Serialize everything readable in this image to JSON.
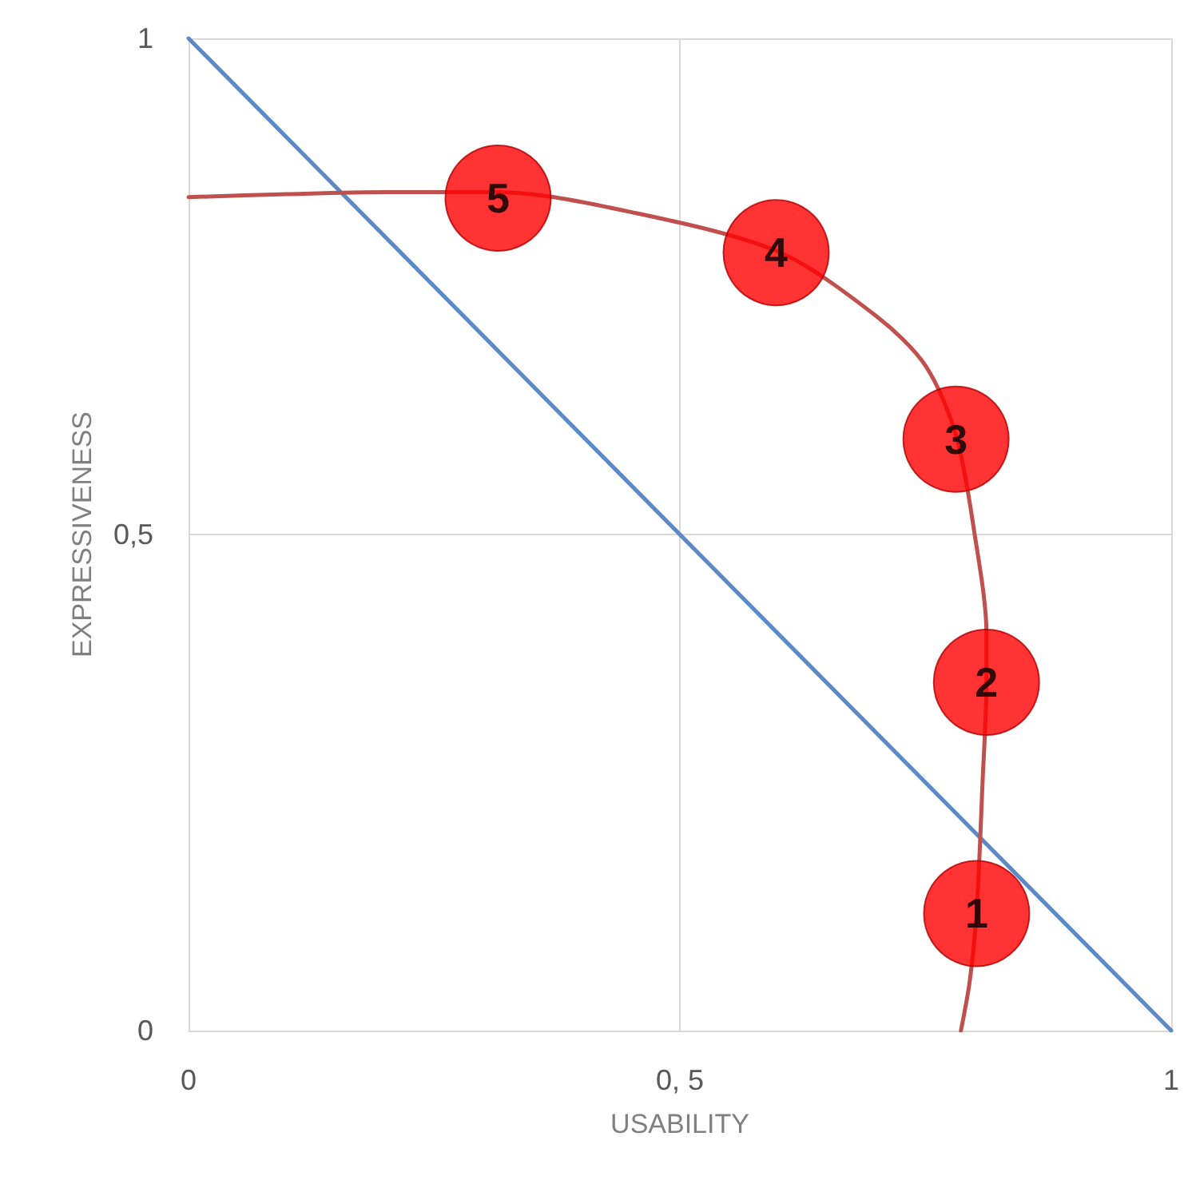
{
  "chart_data": {
    "type": "line",
    "xlabel": "USABILITY",
    "ylabel": "EXPRESSIVENESS",
    "xlim": [
      0,
      1
    ],
    "ylim": [
      0,
      1
    ],
    "xticks": [
      0,
      {
        "value": 0.5,
        "label": "0, 5"
      },
      1
    ],
    "yticks": [
      0,
      {
        "value": 0.5,
        "label": "0,5"
      },
      1
    ],
    "grid": true,
    "line_style": "solid",
    "annotations": [
      {
        "text": "1",
        "x": 0.802,
        "y": 0.118
      },
      {
        "text": "2",
        "x": 0.812,
        "y": 0.351
      },
      {
        "text": "3",
        "x": 0.781,
        "y": 0.596
      },
      {
        "text": "4",
        "x": 0.598,
        "y": 0.784
      },
      {
        "text": "5",
        "x": 0.315,
        "y": 0.839
      }
    ],
    "series": [
      {
        "color": "#5b8ac6",
        "marker": "none",
        "x": [
          0,
          1
        ],
        "values": [
          1,
          0
        ]
      },
      {
        "color": "#c0504d",
        "marker": "none",
        "x": [
          0,
          0.1,
          0.2,
          0.315,
          0.45,
          0.6,
          0.7,
          0.75,
          0.781,
          0.8,
          0.812,
          0.812,
          0.808,
          0.802,
          0.795,
          0.786
        ],
        "values": [
          0.84,
          0.843,
          0.845,
          0.845,
          0.825,
          0.785,
          0.72,
          0.67,
          0.6,
          0.5,
          0.4,
          0.35,
          0.25,
          0.12,
          0.05,
          0
        ]
      },
      {
        "type": "scatter",
        "color": "#ff0000",
        "marker": "circle",
        "x": [
          0.802,
          0.812,
          0.781,
          0.598,
          0.315
        ],
        "values": [
          0.118,
          0.351,
          0.596,
          0.784,
          0.839
        ]
      }
    ]
  }
}
